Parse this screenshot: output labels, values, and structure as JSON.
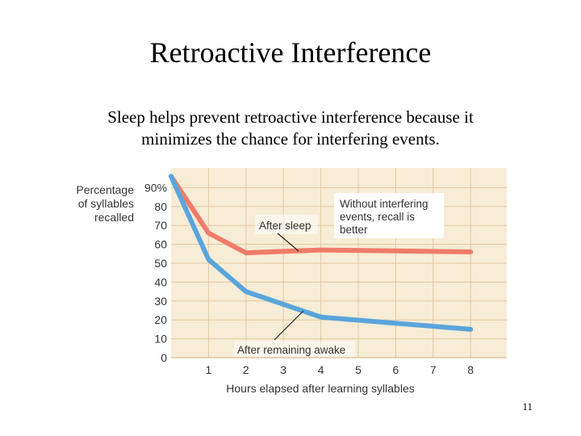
{
  "slide": {
    "title": "Retroactive Interference",
    "subtitle_line1": "Sleep helps prevent retroactive interference because it",
    "subtitle_line2": "minimizes the chance for interfering events.",
    "page_number": "11"
  },
  "chart_data": {
    "type": "line",
    "ylabel_lines": [
      "Percentage",
      "of syllables",
      "recalled"
    ],
    "xlabel": "Hours elapsed after learning syllables",
    "x_ticks": [
      1,
      2,
      3,
      4,
      5,
      6,
      7,
      8
    ],
    "y_ticks": [
      "0",
      "10",
      "20",
      "30",
      "40",
      "50",
      "60",
      "70",
      "80",
      "90%"
    ],
    "xlim": [
      0,
      9
    ],
    "ylim": [
      0,
      100
    ],
    "grid": true,
    "series": [
      {
        "name": "After sleep",
        "color": "#f07b6a",
        "points": [
          [
            0,
            96
          ],
          [
            1,
            66
          ],
          [
            2,
            55.5
          ],
          [
            4,
            57
          ],
          [
            8,
            56
          ]
        ]
      },
      {
        "name": "After remaining awake",
        "color": "#5aa5dd",
        "points": [
          [
            0,
            96
          ],
          [
            1,
            52
          ],
          [
            2,
            35
          ],
          [
            4,
            21.5
          ],
          [
            8,
            15
          ]
        ]
      }
    ],
    "annotations": {
      "after_sleep": "After sleep",
      "after_awake": "After remaining awake",
      "callout_lines": [
        "Without interfering",
        "events, recall is",
        "better"
      ]
    },
    "colors": {
      "background": "#f7ecd6",
      "grid": "#e2c8a0"
    }
  }
}
